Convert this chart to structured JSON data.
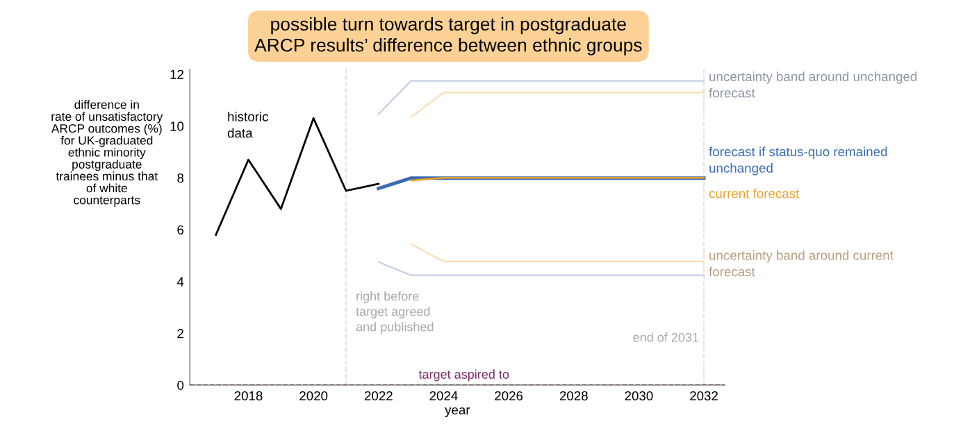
{
  "chart_data": {
    "type": "line",
    "title": "possible turn towards target in postgraduate\nARCP results’ difference between ethnic groups",
    "xlabel": "year",
    "ylabel": "difference in\nrate of unsatisfactory\nARCP outcomes (%)\nfor UK-graduated\nethnic minority\npostgraduate\ntrainees minus that\nof white\ncounterparts",
    "series": [
      {
        "name": "historic\ndata",
        "color": "#000000",
        "x": [
          2017,
          2018,
          2019,
          2020,
          2021,
          2022
        ],
        "values": [
          5.8,
          8.7,
          6.8,
          10.3,
          7.5,
          7.77
        ]
      },
      {
        "name": "uncertainty band around unchanged\nforecast",
        "color": "#c3cfe2",
        "x": [
          2022,
          2023,
          2032
        ],
        "values": [
          10.46,
          11.74,
          11.74
        ]
      },
      {
        "color": "#c3cfe2",
        "x": [
          2022,
          2023,
          2032
        ],
        "values": [
          4.75,
          4.24,
          4.24
        ]
      },
      {
        "color": "#fbdcb0",
        "x": [
          2023,
          2024,
          2032
        ],
        "values": [
          10.35,
          11.29,
          11.29
        ]
      },
      {
        "name": "uncertainty band around current\nforecast",
        "color": "#fbdcb0",
        "x": [
          2023,
          2024,
          2032
        ],
        "values": [
          5.44,
          4.77,
          4.77
        ]
      },
      {
        "name": "forecast if status-quo remained\nunchanged",
        "color": "#3a6cb2",
        "x": [
          2022,
          2023,
          2032
        ],
        "values": [
          7.59,
          7.99,
          7.99
        ]
      },
      {
        "name": "current forecast",
        "color": "#eba12a",
        "x": [
          2023,
          2024,
          2032
        ],
        "values": [
          7.9,
          8.0,
          8.0
        ]
      }
    ],
    "ref_lines": [
      {
        "axis": "x",
        "value": 2021,
        "label": "right before\ntarget agreed\nand published",
        "color": "#e0e0e0",
        "line_style": "dashed"
      },
      {
        "axis": "x",
        "value": 2032,
        "label": "end of 2031",
        "color": "#e0e0e0",
        "line_style": "dashed"
      },
      {
        "axis": "y",
        "value": 0,
        "label": "target aspired to",
        "color": "#7a2b68",
        "line_style": "dashed"
      }
    ],
    "xlim": [
      2016.2,
      2032.65
    ],
    "xticks": [
      2018,
      2020,
      2022,
      2024,
      2026,
      2028,
      2030,
      2032
    ],
    "ylim": [
      0,
      12.2
    ],
    "yticks": [
      0,
      2,
      4,
      6,
      8,
      10,
      12
    ],
    "grid": false,
    "legend": false,
    "marker": "none",
    "line_style": "solid"
  }
}
